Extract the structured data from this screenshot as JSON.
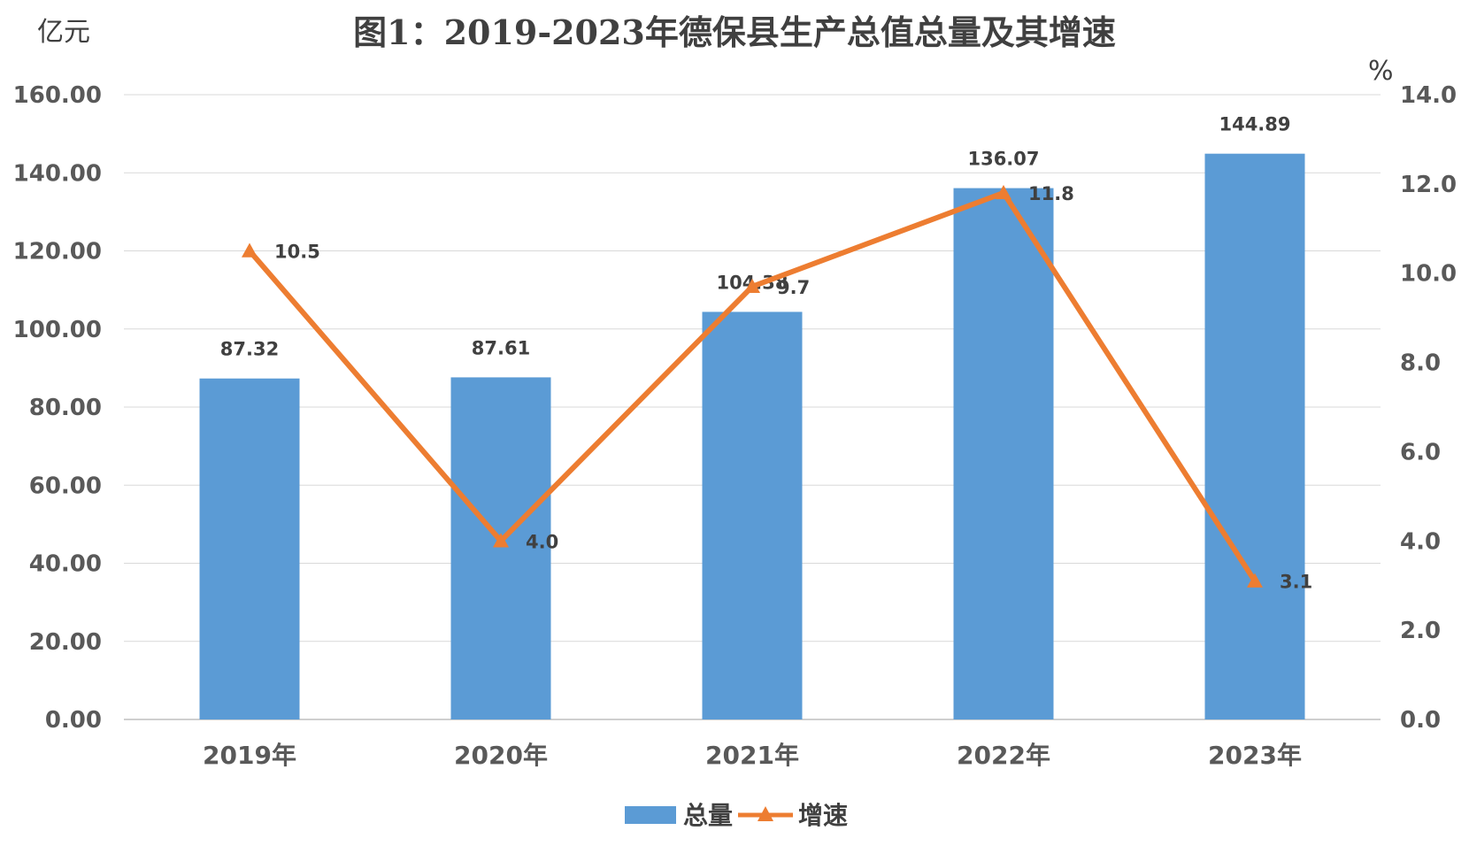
{
  "chart_data": {
    "type": "bar",
    "title": "图1：2019-2023年德保县生产总值总量及其增速",
    "y_left_unit": "亿元",
    "y_right_unit": "%",
    "categories": [
      "2019年",
      "2020年",
      "2021年",
      "2022年",
      "2023年"
    ],
    "y_left_ticks": [
      "0.00",
      "20.00",
      "40.00",
      "60.00",
      "80.00",
      "100.00",
      "120.00",
      "140.00",
      "160.00"
    ],
    "y_right_ticks": [
      "0.0",
      "2.0",
      "4.0",
      "6.0",
      "8.0",
      "10.0",
      "12.0",
      "14.0"
    ],
    "ylim_left": [
      0,
      160
    ],
    "ylim_right": [
      0,
      14
    ],
    "grid": true,
    "legend_position": "bottom",
    "series": [
      {
        "name": "总量",
        "type": "bar",
        "axis": "left",
        "color": "#5b9bd5",
        "values": [
          87.32,
          87.61,
          104.38,
          136.07,
          144.89
        ],
        "labels": [
          "87.32",
          "87.61",
          "104.38",
          "136.07",
          "144.89"
        ]
      },
      {
        "name": "增速",
        "type": "line",
        "axis": "right",
        "marker": "triangle",
        "color": "#ed7d31",
        "values": [
          10.5,
          4.0,
          9.7,
          11.8,
          3.1
        ],
        "labels": [
          "10.5",
          "4.0",
          "9.7",
          "11.8",
          "3.1"
        ]
      }
    ]
  }
}
